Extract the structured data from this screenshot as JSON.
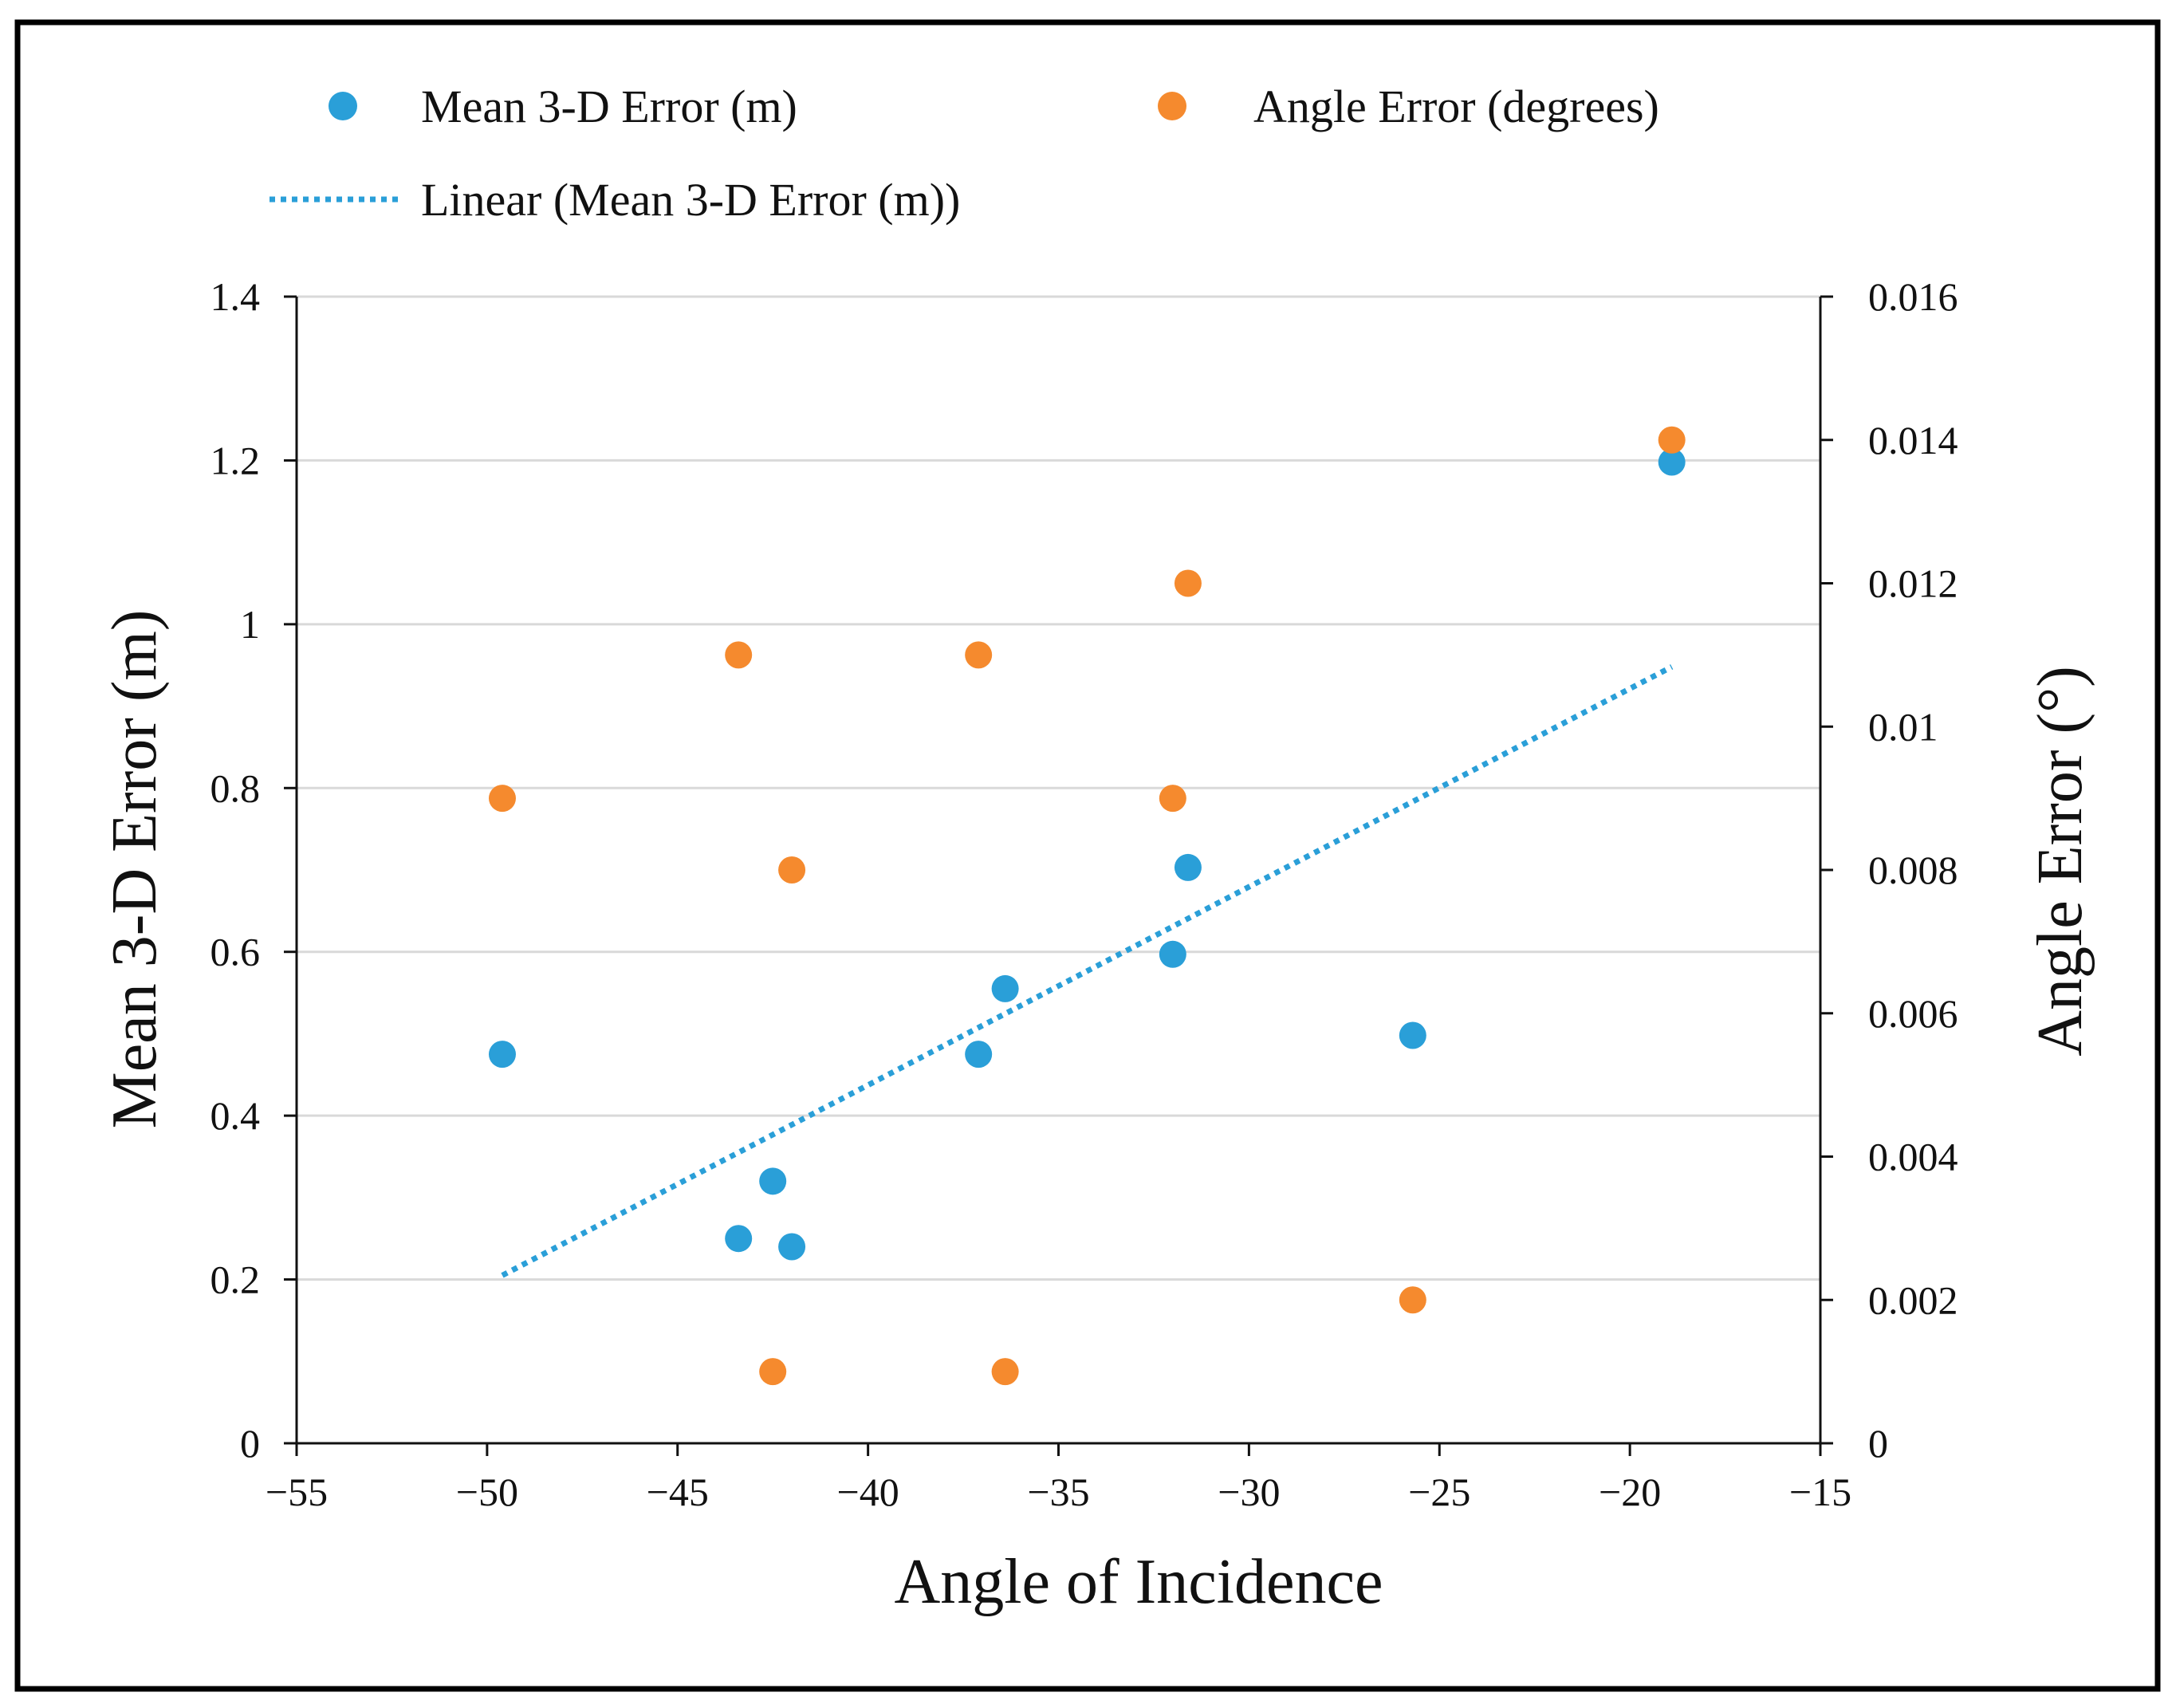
{
  "chart_data": {
    "type": "scatter",
    "title": "",
    "xlabel": "Angle of Incidence",
    "ylabel": "Mean 3-D Error (m)",
    "y2label": "Angle Error (°)",
    "xlim": [
      -55,
      -15
    ],
    "ylim": [
      0,
      1.4
    ],
    "y2lim": [
      0,
      0.016
    ],
    "x_ticks": [
      -55,
      -50,
      -45,
      -40,
      -35,
      -30,
      -25,
      -20,
      -15
    ],
    "x_tick_labels": [
      "−55",
      "−50",
      "−45",
      "−40",
      "−35",
      "−30",
      "−25",
      "−20",
      "−15"
    ],
    "y_ticks": [
      0,
      0.2,
      0.4,
      0.6,
      0.8,
      1,
      1.2,
      1.4
    ],
    "y_tick_labels": [
      "0",
      "0.2",
      "0.4",
      "0.6",
      "0.8",
      "1",
      "1.2",
      "1.4"
    ],
    "y2_ticks": [
      0,
      0.002,
      0.004,
      0.006,
      0.008,
      0.01,
      0.012,
      0.014,
      0.016
    ],
    "y2_tick_labels": [
      "0",
      "0.002",
      "0.004",
      "0.006",
      "0.008",
      "0.01",
      "0.012",
      "0.014",
      "0.016"
    ],
    "grid": "horizontal",
    "series": [
      {
        "name": "Mean 3-D Error (m)",
        "axis": "left",
        "color": "#2a9fd8",
        "x": [
          -49.6,
          -43.4,
          -42.5,
          -42.0,
          -37.1,
          -36.4,
          -32.0,
          -31.6,
          -25.7,
          -18.9
        ],
        "y": [
          0.475,
          0.25,
          0.32,
          0.24,
          0.475,
          0.555,
          0.597,
          0.703,
          0.498,
          1.198
        ]
      },
      {
        "name": "Angle Error (degrees)",
        "axis": "right",
        "color": "#f58a2e",
        "x": [
          -49.6,
          -43.4,
          -42.5,
          -42.0,
          -37.1,
          -36.4,
          -32.0,
          -31.6,
          -25.7,
          -18.9
        ],
        "y": [
          0.009,
          0.011,
          0.001,
          0.008,
          0.011,
          0.001,
          0.009,
          0.012,
          0.002,
          0.014
        ]
      }
    ],
    "trendline": {
      "name": "Linear (Mean 3-D Error (m))",
      "style": "dotted",
      "color": "#2a9fd8",
      "x": [
        -49.6,
        -18.9
      ],
      "y": [
        0.205,
        0.948
      ]
    },
    "legend": [
      "Mean 3-D Error (m)",
      "Angle Error (degrees)",
      "Linear (Mean 3-D Error (m))"
    ],
    "legend_position": "top"
  }
}
